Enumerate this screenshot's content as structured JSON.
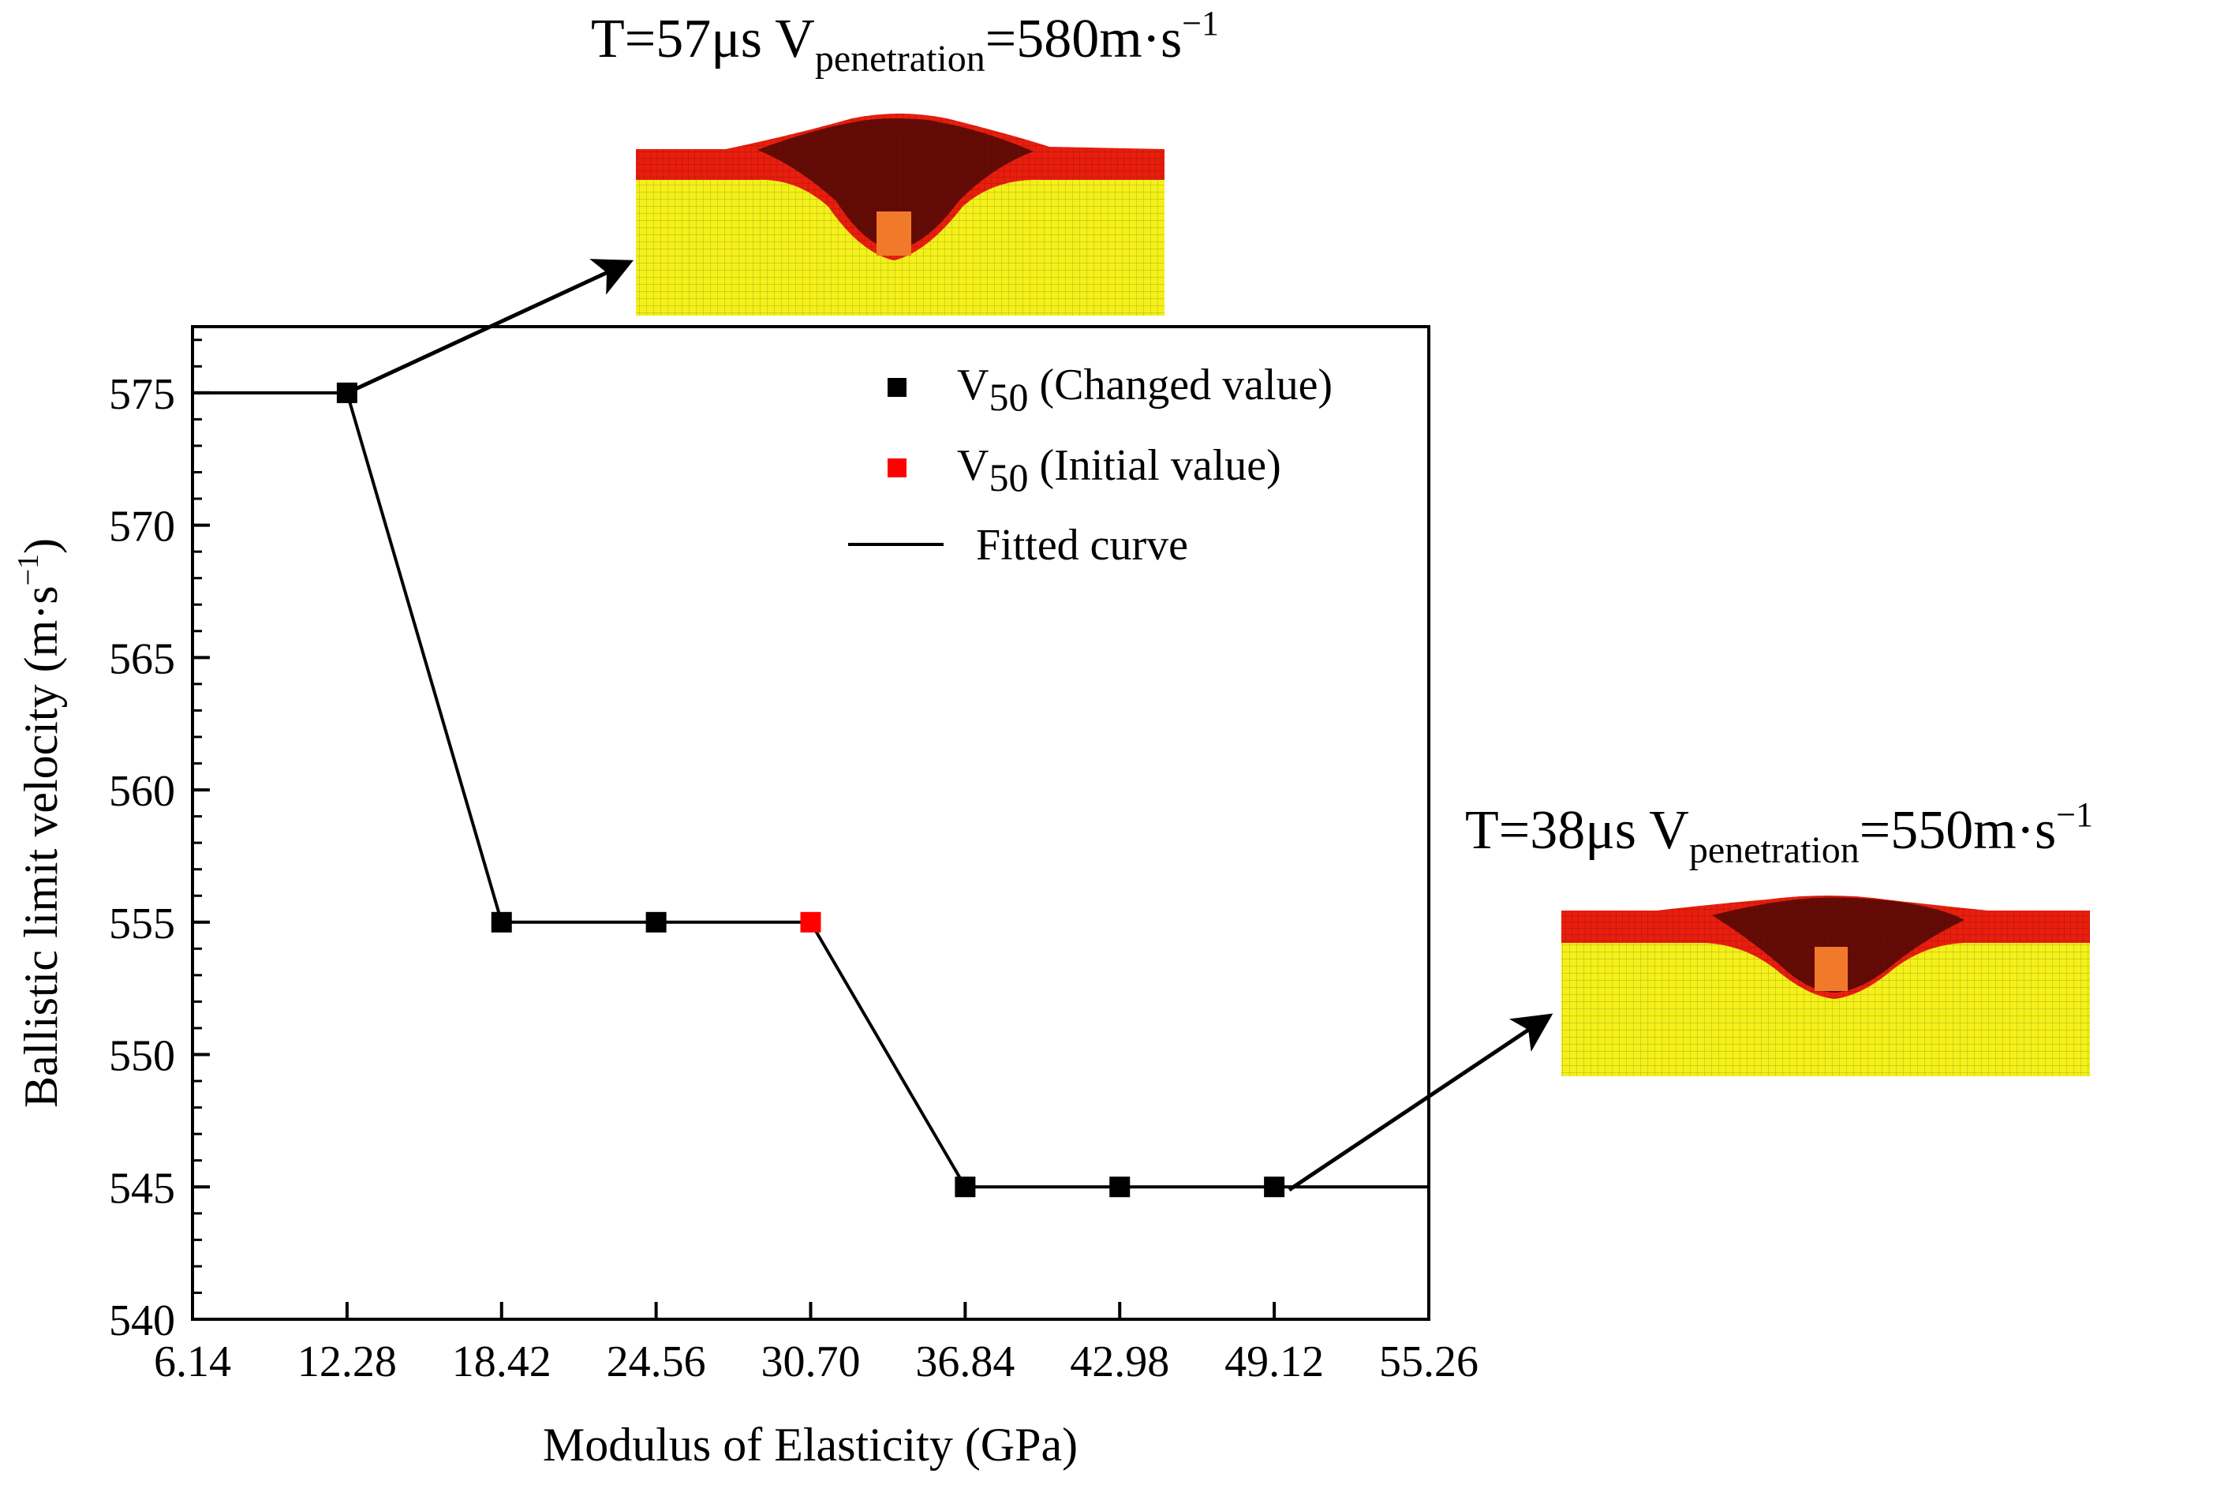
{
  "chart_data": {
    "type": "line",
    "xlabel": "Modulus of Elasticity (GPa)",
    "ylabel": "Ballistic limit velocity (m·s",
    "ylabel_sup": "−1",
    "x_ticks": [
      "6.14",
      "12.28",
      "18.42",
      "24.56",
      "30.70",
      "36.84",
      "42.98",
      "49.12",
      "55.26"
    ],
    "y_ticks": [
      "540",
      "545",
      "550",
      "555",
      "560",
      "565",
      "570",
      "575"
    ],
    "xlim": [
      6.14,
      55.26
    ],
    "ylim": [
      540,
      577.5
    ],
    "series": [
      {
        "name": "V50 (Changed value)",
        "color": "#000000",
        "points": [
          {
            "x": 12.28,
            "y": 575
          },
          {
            "x": 18.42,
            "y": 555
          },
          {
            "x": 24.56,
            "y": 555
          },
          {
            "x": 36.84,
            "y": 545
          },
          {
            "x": 42.98,
            "y": 545
          },
          {
            "x": 49.12,
            "y": 545
          }
        ]
      },
      {
        "name": "V50 (Initial value)",
        "color": "#ff0000",
        "points": [
          {
            "x": 30.7,
            "y": 555
          }
        ]
      },
      {
        "name": "Fitted curve",
        "color": "#000000",
        "line": [
          {
            "x": 6.14,
            "y": 575
          },
          {
            "x": 12.28,
            "y": 575
          },
          {
            "x": 18.42,
            "y": 555
          },
          {
            "x": 24.56,
            "y": 555
          },
          {
            "x": 30.7,
            "y": 555
          },
          {
            "x": 36.84,
            "y": 545
          },
          {
            "x": 42.98,
            "y": 545
          },
          {
            "x": 49.12,
            "y": 545
          },
          {
            "x": 55.26,
            "y": 545
          }
        ]
      }
    ],
    "legend": {
      "position": "top-right",
      "items": [
        {
          "symbol": "square",
          "color": "#000000",
          "main": "V",
          "sub": "50",
          "text": " (Changed value)"
        },
        {
          "symbol": "square",
          "color": "#ff0000",
          "main": "V",
          "sub": "50",
          "text": " (Initial value)"
        },
        {
          "symbol": "line",
          "color": "#000000",
          "main": "",
          "sub": "",
          "text": "Fitted curve"
        }
      ]
    },
    "annotations": [
      {
        "id": "top",
        "time": "T=57μs",
        "v_main": "V",
        "v_sub": "penetration",
        "v_value": "=580m·s",
        "v_sup": "−1",
        "points_to": {
          "x": 12.28,
          "y": 575
        }
      },
      {
        "id": "right",
        "time": "T=38μs",
        "v_main": "V",
        "v_sub": "penetration",
        "v_value": "=550m·s",
        "v_sup": "−1",
        "points_to": {
          "x": 49.12,
          "y": 545
        }
      }
    ],
    "colors": {
      "plate": "#e81e0e",
      "plate_dark": "#7a0a06",
      "target": "#f4f01a",
      "projectile": "#f07a2a"
    }
  }
}
